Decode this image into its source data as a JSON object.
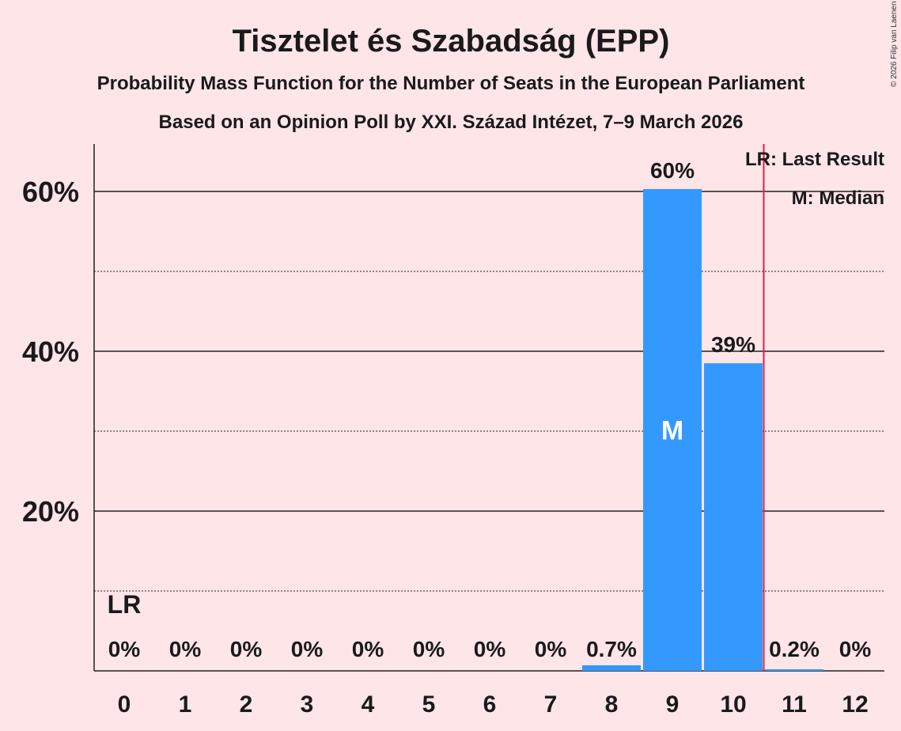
{
  "chart_data": {
    "type": "bar",
    "title": "Tisztelet és Szabadság (EPP)",
    "subtitle": "Probability Mass Function for the Number of Seats in the European Parliament",
    "subtitle2": "Based on an Opinion Poll by XXI. Század Intézet, 7–9 March 2026",
    "copyright": "© 2026 Filip van Laenen",
    "categories": [
      "0",
      "1",
      "2",
      "3",
      "4",
      "5",
      "6",
      "7",
      "8",
      "9",
      "10",
      "11",
      "12"
    ],
    "values": [
      0,
      0,
      0,
      0,
      0,
      0,
      0,
      0,
      0.7,
      60.3,
      38.5,
      0.2,
      0
    ],
    "value_labels": [
      "0%",
      "0%",
      "0%",
      "0%",
      "0%",
      "0%",
      "0%",
      "0%",
      "0.7%",
      "60%",
      "39%",
      "0.2%",
      "0%"
    ],
    "ylim": [
      0,
      66
    ],
    "yticks": [
      {
        "v": 20,
        "label": "20%"
      },
      {
        "v": 40,
        "label": "40%"
      },
      {
        "v": 60,
        "label": "60%"
      }
    ],
    "minor_gridlines": [
      10,
      30,
      50
    ],
    "last_result": {
      "seats": 0,
      "label": "LR"
    },
    "median": {
      "seats": 9,
      "label": "M"
    },
    "legend": {
      "lr": "LR: Last Result",
      "m": "M: Median",
      "placement": "top-right"
    },
    "colors": {
      "bar": "#3399ff",
      "lr_line": "#e0204a",
      "background": "#fde5e8",
      "text": "#1a1a1a"
    }
  }
}
